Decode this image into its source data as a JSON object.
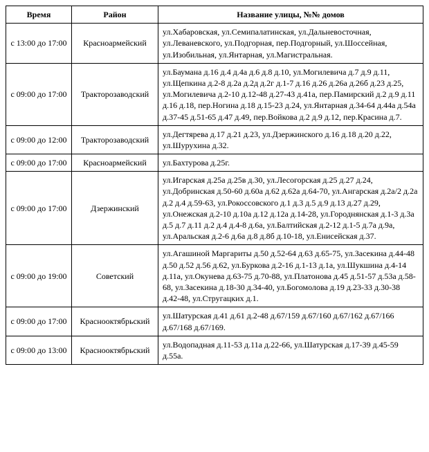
{
  "table": {
    "headers": {
      "time": "Время",
      "district": "Район",
      "streets": "Название улицы, №№ домов"
    },
    "rows": [
      {
        "time": "с 13:00 до 17:00",
        "district": "Красноармейский",
        "streets": "ул.Хабаровская, ул.Семипалатинская, ул.Дальневосточная, ул.Леваневского, ул.Подгорная, пер.Подгорный, ул.Шоссейная, ул.Изобильная, ул.Янтарная, ул.Магистральная."
      },
      {
        "time": "с 09:00 до 17:00",
        "district": "Тракторозаводский",
        "streets": "ул.Баумана д.16 д.4 д.4а д.6 д.8 д.10, ул.Могилевича д.7 д.9 д.11, ул.Щепкина д.2-8 д.2а д.2д д.2г д.1-7 д.16 д.26 д.26а д.26б д.23 д.25, ул.Могилевича д.2-10 д.12-48 д.27-43 д.41а, пер.Памирский д.2 д.9 д.11 д.16 д.18, пер.Ногина д.18 д.15-23 д.24, ул.Янтарная д.34-64 д.44а д.54а д.37-45 д.51-65 д.47 д.49, пер.Войкова д.2 д.9 д.12, пер.Красина д.7."
      },
      {
        "time": "с 09:00 до 12:00",
        "district": "Тракторозаводский",
        "streets": "ул.Дегтярева д.17 д.21 д.23, ул.Дзержинского д.16 д.18 д.20 д.22, ул.Шурухина д.32."
      },
      {
        "time": "с 09:00 до 17:00",
        "district": "Красноармейский",
        "streets": "ул.Бахтурова д.25г."
      },
      {
        "time": "с 09:00 до 17:00",
        "district": "Дзержинский",
        "streets": "ул.Игарская д.25а д.25в д.30, ул.Лесогорская д.25 д.27 д.24, ул.Добринская д.50-60 д.60а д.62 д.62а д.64-70, ул.Ангарская д.2а/2 д.2а д.2 д.4 д.59-63, ул.Рокоссовского д.1 д.3 д.5 д.9 д.13 д.27 д.29, ул.Онежская д.2-10 д.10а д.12 д.12а д.14-28, ул.Городнянская д.1-3 д.3а д.5 д.7 д.11 д.2 д.4 д.4-8 д.6а, ул.Балтийская д.2-12 д.1-5 д.7а д.9а, ул.Аральская д.2-6 д.6а д.8 д.8б д.10-18, ул.Енисейская д.37."
      },
      {
        "time": "с 09:00 до 19:00",
        "district": "Советский",
        "streets": "ул.Агашиной Маргариты д.50 д.52-64 д.63 д.65-75, ул.Засекина д.44-48 д.50 д.52 д.56 д.62, ул.Буркова д.2-16 д.1-13 д.1а, ул.Шукшина д.4-14 д.11а, ул.Окунева д.63-75 д.70-88, ул.Платонова д.45 д.51-57 д.53а д.58-68, ул.Засекина д.18-30 д.34-40, ул.Богомолова д.19 д.23-33 д.30-38 д.42-48, ул.Стругацких д.1."
      },
      {
        "time": "с 09:00 до 17:00",
        "district": "Краснооктябрьский",
        "streets": "ул.Шатурская д.41 д.61 д.2-48 д.67/159 д.67/160 д.67/162 д.67/166 д.67/168 д.67/169."
      },
      {
        "time": "с 09:00 до 13:00",
        "district": "Краснооктябрьский",
        "streets": "ул.Водопадная д.11-53 д.11а д.22-66, ул.Шатурская д.17-39 д.45-59 д.55а."
      }
    ]
  }
}
